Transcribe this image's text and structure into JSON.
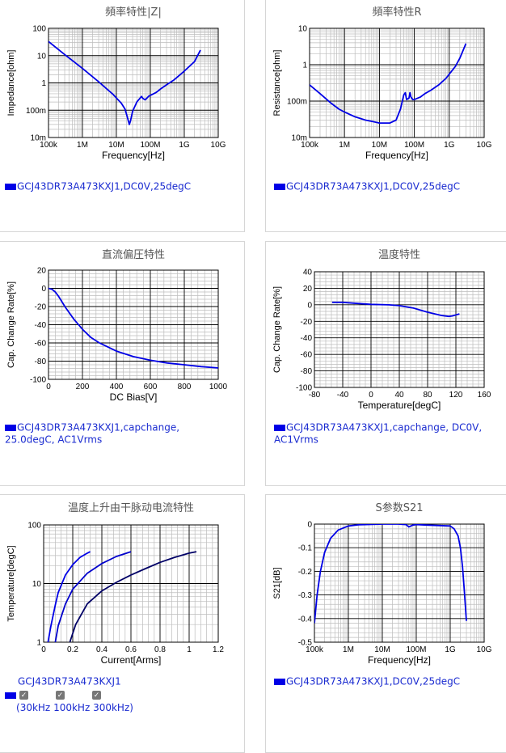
{
  "colors": {
    "curve": "#0000e6",
    "legend_text": "#1a2bd0",
    "grid_major": "#000000",
    "grid_minor": "#bdbdbd"
  },
  "charts": [
    {
      "id": "impedance",
      "title": "頻率特性|Z|",
      "xlabel": "Frequency[Hz]",
      "ylabel": "Impedance[ohm]",
      "xscale": "log",
      "yscale": "log",
      "xlim": [
        100000,
        10000000000
      ],
      "ylim": [
        0.01,
        100
      ],
      "xticks": [
        {
          "v": 100000,
          "l": "100k"
        },
        {
          "v": 1000000,
          "l": "1M"
        },
        {
          "v": 10000000,
          "l": "10M"
        },
        {
          "v": 100000000,
          "l": "100M"
        },
        {
          "v": 1000000000,
          "l": "1G"
        },
        {
          "v": 10000000000,
          "l": "10G"
        }
      ],
      "yticks": [
        {
          "v": 0.01,
          "l": "10m"
        },
        {
          "v": 0.1,
          "l": "100m"
        },
        {
          "v": 1,
          "l": "1"
        },
        {
          "v": 10,
          "l": "10"
        },
        {
          "v": 100,
          "l": "100"
        }
      ],
      "series": [
        {
          "x": [
            100000,
            300000,
            1000000,
            3000000,
            8000000,
            14000000,
            18000000,
            20000000,
            22000000,
            24000000,
            26000000,
            30000000,
            40000000,
            55000000,
            60000000,
            70000000,
            80000000,
            90000000,
            100000000,
            150000000,
            200000000,
            300000000,
            500000000,
            1000000000,
            2000000000,
            3000000000
          ],
          "y": [
            33,
            11,
            3.4,
            1.1,
            0.38,
            0.18,
            0.11,
            0.07,
            0.045,
            0.03,
            0.04,
            0.09,
            0.2,
            0.32,
            0.27,
            0.24,
            0.28,
            0.33,
            0.35,
            0.45,
            0.6,
            0.85,
            1.3,
            2.7,
            6,
            16
          ]
        }
      ],
      "legend": "GCJ43DR73A473KXJ1,DC0V,25degC"
    },
    {
      "id": "resistance",
      "title": "頻率特性R",
      "xlabel": "Frequency[Hz]",
      "ylabel": "Resistance[ohm]",
      "xscale": "log",
      "yscale": "log",
      "xlim": [
        100000,
        10000000000
      ],
      "ylim": [
        0.01,
        10
      ],
      "xticks": [
        {
          "v": 100000,
          "l": "100k"
        },
        {
          "v": 1000000,
          "l": "1M"
        },
        {
          "v": 10000000,
          "l": "10M"
        },
        {
          "v": 100000000,
          "l": "100M"
        },
        {
          "v": 1000000000,
          "l": "1G"
        },
        {
          "v": 10000000000,
          "l": "10G"
        }
      ],
      "yticks": [
        {
          "v": 0.01,
          "l": "10m"
        },
        {
          "v": 0.1,
          "l": "100m"
        },
        {
          "v": 1,
          "l": "1"
        },
        {
          "v": 10,
          "l": "10"
        }
      ],
      "series": [
        {
          "x": [
            100000,
            200000,
            400000,
            700000,
            1000000,
            2000000,
            4000000,
            7000000,
            10000000,
            20000000,
            30000000,
            40000000,
            50000000,
            55000000,
            60000000,
            70000000,
            75000000,
            80000000,
            90000000,
            100000000,
            150000000,
            200000000,
            300000000,
            500000000,
            800000000,
            1000000000,
            1500000000,
            2000000000,
            2500000000,
            3000000000
          ],
          "y": [
            0.28,
            0.16,
            0.09,
            0.06,
            0.05,
            0.037,
            0.03,
            0.027,
            0.025,
            0.025,
            0.03,
            0.06,
            0.15,
            0.17,
            0.11,
            0.12,
            0.17,
            0.13,
            0.11,
            0.11,
            0.13,
            0.16,
            0.2,
            0.28,
            0.42,
            0.55,
            0.9,
            1.5,
            2.5,
            3.8
          ]
        }
      ],
      "legend": "GCJ43DR73A473KXJ1,DC0V,25degC"
    },
    {
      "id": "dcbias",
      "title": "直流偏圧特性",
      "xlabel": "DC Bias[V]",
      "ylabel": "Cap. Change Rate[%]",
      "xscale": "linear",
      "yscale": "linear",
      "xlim": [
        0,
        1000
      ],
      "ylim": [
        -100,
        20
      ],
      "xticks": [
        {
          "v": 0,
          "l": "0"
        },
        {
          "v": 200,
          "l": "200"
        },
        {
          "v": 400,
          "l": "400"
        },
        {
          "v": 600,
          "l": "600"
        },
        {
          "v": 800,
          "l": "800"
        },
        {
          "v": 1000,
          "l": "1000"
        }
      ],
      "yticks": [
        {
          "v": 20,
          "l": "20"
        },
        {
          "v": 0,
          "l": "0"
        },
        {
          "v": -20,
          "l": "-20"
        },
        {
          "v": -40,
          "l": "-40"
        },
        {
          "v": -60,
          "l": "-60"
        },
        {
          "v": -80,
          "l": "-80"
        },
        {
          "v": -100,
          "l": "-100"
        }
      ],
      "series": [
        {
          "x": [
            0,
            20,
            40,
            60,
            80,
            100,
            150,
            200,
            250,
            300,
            400,
            500,
            600,
            700,
            800,
            900,
            1000
          ],
          "y": [
            0,
            -1,
            -4,
            -9,
            -15,
            -21,
            -34,
            -45,
            -54,
            -60,
            -69,
            -75,
            -79,
            -82,
            -84,
            -86,
            -87.5
          ]
        }
      ],
      "legend": "GCJ43DR73A473KXJ1,capchange, 25.0degC, AC1Vrms"
    },
    {
      "id": "temperature",
      "title": "温度特性",
      "xlabel": "Temperature[degC]",
      "ylabel": "Cap. Change Rate[%]",
      "xscale": "linear",
      "yscale": "linear",
      "xlim": [
        -80,
        160
      ],
      "ylim": [
        -100,
        40
      ],
      "xticks": [
        {
          "v": -80,
          "l": "-80"
        },
        {
          "v": -40,
          "l": "-40"
        },
        {
          "v": 0,
          "l": "0"
        },
        {
          "v": 40,
          "l": "40"
        },
        {
          "v": 80,
          "l": "80"
        },
        {
          "v": 120,
          "l": "120"
        },
        {
          "v": 160,
          "l": "160"
        }
      ],
      "yticks": [
        {
          "v": 40,
          "l": "40"
        },
        {
          "v": 20,
          "l": "20"
        },
        {
          "v": 0,
          "l": "0"
        },
        {
          "v": -20,
          "l": "-20"
        },
        {
          "v": -40,
          "l": "-40"
        },
        {
          "v": -60,
          "l": "-60"
        },
        {
          "v": -80,
          "l": "-80"
        },
        {
          "v": -100,
          "l": "-100"
        }
      ],
      "series": [
        {
          "x": [
            -55,
            -40,
            -25,
            0,
            25,
            40,
            60,
            80,
            100,
            110,
            115,
            125
          ],
          "y": [
            3,
            3,
            2,
            0.5,
            0,
            -1,
            -4,
            -9,
            -13,
            -14,
            -13.5,
            -11
          ]
        }
      ],
      "legend": "GCJ43DR73A473KXJ1,capchange, DC0V, AC1Vrms"
    },
    {
      "id": "heating",
      "title": "温度上升由干脉动电流特性",
      "xlabel": "Current[Arms]",
      "ylabel": "Temperature[degC]",
      "xscale": "linear",
      "yscale": "log",
      "xlim": [
        0,
        1.2
      ],
      "ylim": [
        1,
        100
      ],
      "xticks": [
        {
          "v": 0,
          "l": "0"
        },
        {
          "v": 0.2,
          "l": "0.2"
        },
        {
          "v": 0.4,
          "l": "0.4"
        },
        {
          "v": 0.6,
          "l": "0.6"
        },
        {
          "v": 0.8,
          "l": "0.8"
        },
        {
          "v": 1,
          "l": "1"
        },
        {
          "v": 1.2,
          "l": "1.2"
        }
      ],
      "yticks": [
        {
          "v": 1,
          "l": "1"
        },
        {
          "v": 10,
          "l": "10"
        },
        {
          "v": 100,
          "l": "100"
        }
      ],
      "series": [
        {
          "name": "30kHz",
          "x": [
            0.03,
            0.05,
            0.08,
            0.1,
            0.15,
            0.2,
            0.25,
            0.3,
            0.32
          ],
          "y": [
            1,
            1.9,
            4.3,
            7,
            14,
            21,
            28,
            33,
            35
          ]
        },
        {
          "name": "100kHz",
          "x": [
            0.08,
            0.1,
            0.15,
            0.2,
            0.3,
            0.4,
            0.5,
            0.6
          ],
          "y": [
            1,
            1.9,
            4.5,
            8,
            15,
            22,
            29,
            35
          ]
        },
        {
          "name": "300kHz",
          "x": [
            0.18,
            0.22,
            0.3,
            0.4,
            0.5,
            0.6,
            0.7,
            0.8,
            0.9,
            1.0,
            1.05
          ],
          "y": [
            1,
            2,
            4.5,
            7.5,
            10.5,
            14,
            18,
            23,
            28,
            33,
            35
          ]
        }
      ],
      "legend": "GCJ43DR73A473KXJ1",
      "checks": [
        "30kHz",
        "100kHz",
        "300kHz"
      ]
    },
    {
      "id": "s21",
      "title": "S参数S21",
      "xlabel": "Frequency[Hz]",
      "ylabel": "S21[dB]",
      "xscale": "log",
      "yscale": "linear",
      "xlim": [
        100000,
        10000000000
      ],
      "ylim": [
        -0.5,
        0
      ],
      "xticks": [
        {
          "v": 100000,
          "l": "100k"
        },
        {
          "v": 1000000,
          "l": "1M"
        },
        {
          "v": 10000000,
          "l": "10M"
        },
        {
          "v": 100000000,
          "l": "100M"
        },
        {
          "v": 1000000000,
          "l": "1G"
        },
        {
          "v": 10000000000,
          "l": "10G"
        }
      ],
      "yticks": [
        {
          "v": 0,
          "l": "0"
        },
        {
          "v": -0.1,
          "l": "-0.1"
        },
        {
          "v": -0.2,
          "l": "-0.2"
        },
        {
          "v": -0.3,
          "l": "-0.3"
        },
        {
          "v": -0.4,
          "l": "-0.4"
        },
        {
          "v": -0.5,
          "l": "-0.5"
        }
      ],
      "series": [
        {
          "x": [
            100000,
            120000,
            150000,
            200000,
            300000,
            500000,
            1000000,
            2000000,
            5000000,
            10000000,
            30000000,
            50000000,
            60000000,
            80000000,
            100000000,
            200000000,
            500000000,
            1000000000,
            1300000000,
            1700000000,
            2000000000,
            2300000000,
            2600000000,
            2800000000,
            3000000000
          ],
          "y": [
            -0.42,
            -0.3,
            -0.2,
            -0.12,
            -0.06,
            -0.025,
            -0.008,
            -0.003,
            -0.001,
            0,
            0,
            -0.002,
            -0.012,
            -0.004,
            -0.002,
            -0.004,
            -0.006,
            -0.008,
            -0.02,
            -0.05,
            -0.1,
            -0.18,
            -0.28,
            -0.35,
            -0.41
          ]
        }
      ],
      "legend": "GCJ43DR73A473KXJ1,DC0V,25degC"
    }
  ],
  "chart_data": [
    {
      "type": "line",
      "title": "頻率特性|Z|",
      "xlabel": "Frequency[Hz]",
      "ylabel": "Impedance[ohm]",
      "xlim": [
        100000,
        10000000000
      ],
      "ylim": [
        0.01,
        100
      ],
      "scale": "log-log"
    },
    {
      "type": "line",
      "title": "頻率特性R",
      "xlabel": "Frequency[Hz]",
      "ylabel": "Resistance[ohm]",
      "xlim": [
        100000,
        10000000000
      ],
      "ylim": [
        0.01,
        10
      ],
      "scale": "log-log"
    },
    {
      "type": "line",
      "title": "直流偏圧特性",
      "xlabel": "DC Bias[V]",
      "ylabel": "Cap. Change Rate[%]",
      "xlim": [
        0,
        1000
      ],
      "ylim": [
        -100,
        20
      ]
    },
    {
      "type": "line",
      "title": "温度特性",
      "xlabel": "Temperature[degC]",
      "ylabel": "Cap. Change Rate[%]",
      "xlim": [
        -80,
        160
      ],
      "ylim": [
        -100,
        40
      ]
    },
    {
      "type": "line",
      "title": "温度上升由干脉动电流特性",
      "xlabel": "Current[Arms]",
      "ylabel": "Temperature[degC]",
      "xlim": [
        0,
        1.2
      ],
      "ylim": [
        1,
        100
      ],
      "scale": "y-log"
    },
    {
      "type": "line",
      "title": "S参数S21",
      "xlabel": "Frequency[Hz]",
      "ylabel": "S21[dB]",
      "xlim": [
        100000,
        10000000000
      ],
      "ylim": [
        -0.5,
        0
      ],
      "scale": "x-log"
    }
  ]
}
